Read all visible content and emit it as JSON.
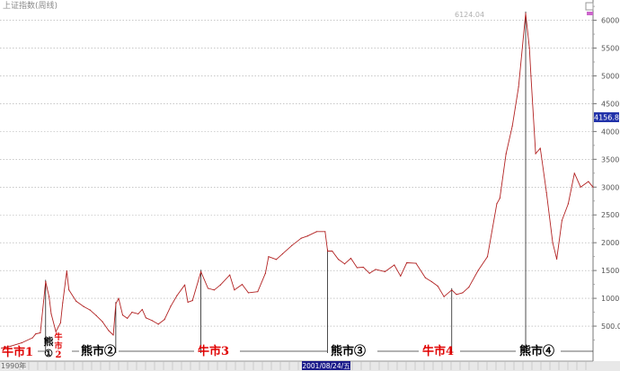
{
  "chart_data": {
    "type": "line",
    "title": "上证指数(周线)",
    "start_label": "1990年",
    "peak_label": "6124.04",
    "current_value_label": "4156.8",
    "crosshair_date": "2001/08/24/五",
    "yaxis_ticks": [
      "500.0",
      "1000",
      "1500",
      "2000",
      "2500",
      "3000",
      "3500",
      "4000",
      "4500",
      "5000",
      "5500",
      "6000"
    ],
    "ylim": [
      0,
      6300
    ],
    "xlim": [
      1990.9,
      2010.0
    ],
    "grid": true,
    "colors": {
      "line": "#b22222",
      "grid": "#a8a8a8",
      "cursor": "#000000",
      "current_box": "#2233aa",
      "date_box": "#1a1a8a",
      "bull_label": "#e00000",
      "bear_label": "#000000"
    },
    "x": [
      1990.95,
      1991.25,
      1991.6,
      1991.95,
      1992.05,
      1992.2,
      1992.37,
      1992.48,
      1992.55,
      1992.7,
      1992.85,
      1992.92,
      1993.05,
      1993.12,
      1993.35,
      1993.6,
      1993.8,
      1994.0,
      1994.2,
      1994.4,
      1994.55,
      1994.63,
      1994.72,
      1994.85,
      1995.0,
      1995.15,
      1995.35,
      1995.48,
      1995.6,
      1995.8,
      1996.0,
      1996.2,
      1996.4,
      1996.6,
      1996.85,
      1996.95,
      1997.1,
      1997.37,
      1997.6,
      1997.8,
      1998.0,
      1998.3,
      1998.45,
      1998.7,
      1998.9,
      1999.2,
      1999.45,
      1999.55,
      1999.8,
      2000.0,
      2000.3,
      2000.6,
      2000.8,
      2001.1,
      2001.37,
      2001.45,
      2001.6,
      2001.8,
      2002.0,
      2002.2,
      2002.4,
      2002.6,
      2002.8,
      2003.0,
      2003.3,
      2003.6,
      2003.8,
      2004.0,
      2004.3,
      2004.6,
      2004.8,
      2005.0,
      2005.2,
      2005.45,
      2005.6,
      2005.8,
      2006.0,
      2006.3,
      2006.6,
      2006.9,
      2007.0,
      2007.2,
      2007.4,
      2007.6,
      2007.83,
      2007.95,
      2008.0,
      2008.15,
      2008.3,
      2008.5,
      2008.7,
      2008.83,
      2009.0,
      2009.2,
      2009.4,
      2009.6,
      2009.85,
      2010.0
    ],
    "y": [
      105,
      140,
      200,
      290,
      360,
      380,
      1300,
      1030,
      720,
      400,
      560,
      920,
      1490,
      1150,
      950,
      850,
      790,
      690,
      580,
      420,
      340,
      900,
      1000,
      700,
      640,
      750,
      720,
      800,
      650,
      600,
      535,
      620,
      860,
      1050,
      1240,
      930,
      960,
      1480,
      1180,
      1150,
      1240,
      1420,
      1150,
      1250,
      1100,
      1120,
      1450,
      1750,
      1700,
      1800,
      1950,
      2080,
      2120,
      2200,
      2200,
      1850,
      1850,
      1700,
      1620,
      1720,
      1550,
      1560,
      1450,
      1520,
      1480,
      1600,
      1400,
      1640,
      1630,
      1370,
      1300,
      1220,
      1030,
      1150,
      1070,
      1100,
      1200,
      1500,
      1750,
      2700,
      2800,
      3600,
      4100,
      4800,
      6124,
      5500,
      5000,
      3600,
      3700,
      2900,
      2000,
      1706,
      2400,
      2700,
      3250,
      3000,
      3100,
      3000
    ],
    "cursor_lines_x": [
      1992.37,
      1994.63,
      1997.37,
      2001.45,
      2005.45,
      2007.83
    ],
    "phase_labels": [
      {
        "text": "牛市1",
        "kind": "bull"
      },
      {
        "text": "熊",
        "kind": "bear"
      },
      {
        "text": "①",
        "kind": "bear"
      },
      {
        "text": "牛",
        "kind": "bull"
      },
      {
        "text": "市",
        "kind": "bull"
      },
      {
        "text": "2",
        "kind": "bull"
      },
      {
        "text": "熊市②",
        "kind": "bear"
      },
      {
        "text": "牛市3",
        "kind": "bull"
      },
      {
        "text": "熊市③",
        "kind": "bear"
      },
      {
        "text": "牛市4",
        "kind": "bull"
      },
      {
        "text": "熊市④",
        "kind": "bear"
      }
    ]
  }
}
